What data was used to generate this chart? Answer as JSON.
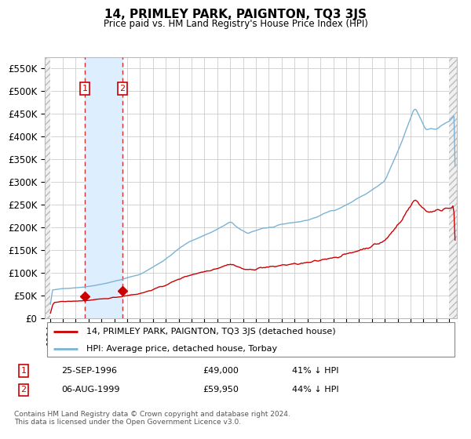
{
  "title": "14, PRIMLEY PARK, PAIGNTON, TQ3 3JS",
  "subtitle": "Price paid vs. HM Land Registry's House Price Index (HPI)",
  "legend_line1": "14, PRIMLEY PARK, PAIGNTON, TQ3 3JS (detached house)",
  "legend_line2": "HPI: Average price, detached house, Torbay",
  "transaction1_date": "25-SEP-1996",
  "transaction1_price": 49000,
  "transaction1_label": "41% ↓ HPI",
  "transaction2_date": "06-AUG-1999",
  "transaction2_price": 59950,
  "transaction2_label": "44% ↓ HPI",
  "footer": "Contains HM Land Registry data © Crown copyright and database right 2024.\nThis data is licensed under the Open Government Licence v3.0.",
  "hpi_color": "#7ab3d6",
  "price_color": "#cc0000",
  "marker_color": "#cc0000",
  "vline_color": "#cc3333",
  "shade_color": "#ddeeff",
  "hatch_color": "#cccccc",
  "ylim_max": 575000,
  "ylim_min": 0,
  "xlim_min": 1993.6,
  "xlim_max": 2025.6,
  "t1_year": 1996,
  "t1_month": 9,
  "t2_year": 1999,
  "t2_month": 8,
  "t1_price": 49000,
  "t2_price": 59950
}
